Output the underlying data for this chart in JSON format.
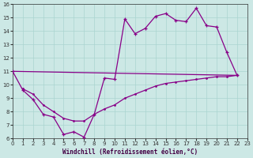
{
  "xlabel": "Windchill (Refroidissement éolien,°C)",
  "xlim": [
    0,
    23
  ],
  "ylim": [
    6,
    16
  ],
  "xticks": [
    0,
    1,
    2,
    3,
    4,
    5,
    6,
    7,
    8,
    9,
    10,
    11,
    12,
    13,
    14,
    15,
    16,
    17,
    18,
    19,
    20,
    21,
    22,
    23
  ],
  "yticks": [
    6,
    7,
    8,
    9,
    10,
    11,
    12,
    13,
    14,
    15,
    16
  ],
  "bg_color": "#cce8e5",
  "line_color": "#880088",
  "grid_color": "#aad4d0",
  "line1_x": [
    0,
    1,
    2,
    3,
    4,
    5,
    6,
    7,
    8,
    9,
    10,
    11,
    12,
    13,
    14,
    15,
    16,
    17,
    18,
    19,
    20,
    21,
    22
  ],
  "line1_y": [
    11,
    9.6,
    8.9,
    7.8,
    7.6,
    6.3,
    6.5,
    6.1,
    7.8,
    10.5,
    10.4,
    14.9,
    13.8,
    14.2,
    15.1,
    15.3,
    14.8,
    14.7,
    15.7,
    14.4,
    14.3,
    12.4,
    10.7
  ],
  "line2_x": [
    0,
    22
  ],
  "line2_y": [
    11,
    10.7
  ],
  "line3_x": [
    1,
    2,
    3,
    4,
    5,
    6,
    7,
    8,
    9,
    10,
    11,
    12,
    13,
    14,
    15,
    16,
    17,
    18,
    19,
    20,
    21,
    22
  ],
  "line3_y": [
    9.7,
    9.3,
    8.5,
    8.0,
    7.5,
    7.3,
    7.3,
    7.8,
    8.2,
    8.5,
    9.0,
    9.3,
    9.6,
    9.9,
    10.1,
    10.2,
    10.3,
    10.4,
    10.5,
    10.6,
    10.6,
    10.7
  ]
}
